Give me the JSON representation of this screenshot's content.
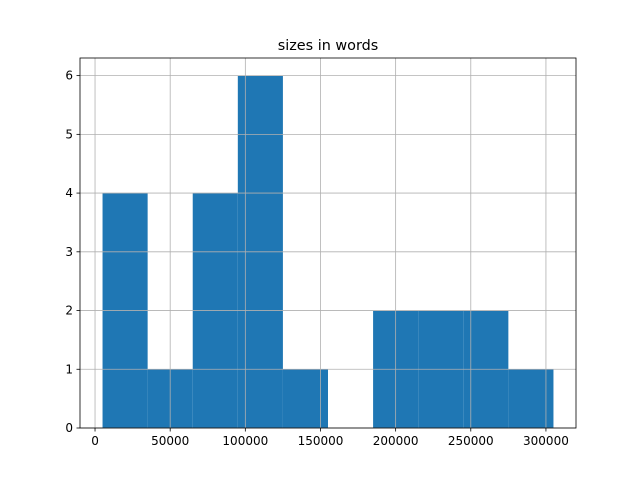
{
  "chart_data": {
    "type": "histogram",
    "title": "sizes in words",
    "bins": [
      5000,
      35000,
      65000,
      95000,
      125000,
      155000,
      185000,
      215000,
      245000,
      275000,
      305000
    ],
    "values": [
      4,
      1,
      4,
      6,
      1,
      0,
      2,
      2,
      2,
      1
    ],
    "color": "#1f77b4",
    "xlim": [
      -10000,
      320000
    ],
    "xticks": [
      0,
      50000,
      100000,
      150000,
      200000,
      250000,
      300000
    ],
    "ylim": [
      0,
      6.3
    ],
    "yticks": [
      0,
      1,
      2,
      3,
      4,
      5,
      6
    ],
    "grid": true
  }
}
